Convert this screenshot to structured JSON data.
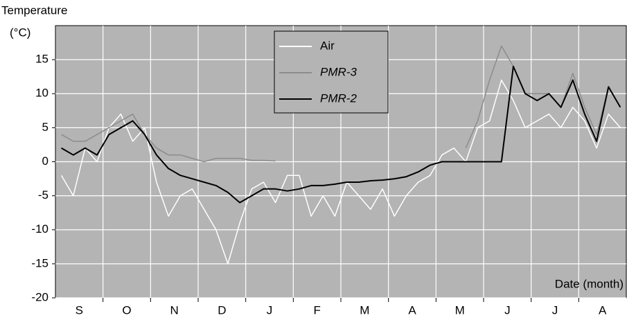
{
  "chart_data": {
    "type": "line",
    "ylabel": "Temperature",
    "yunit": "(°C)",
    "xlabel": "Date (month)",
    "xlim": [
      0,
      12
    ],
    "xticks": [
      {
        "value": 0.5,
        "label": "S"
      },
      {
        "value": 1.5,
        "label": "O"
      },
      {
        "value": 2.5,
        "label": "N"
      },
      {
        "value": 3.5,
        "label": "D"
      },
      {
        "value": 4.5,
        "label": "J"
      },
      {
        "value": 5.5,
        "label": "F"
      },
      {
        "value": 6.5,
        "label": "M"
      },
      {
        "value": 7.5,
        "label": "A"
      },
      {
        "value": 8.5,
        "label": "M"
      },
      {
        "value": 9.5,
        "label": "J"
      },
      {
        "value": 10.5,
        "label": "J"
      },
      {
        "value": 11.5,
        "label": "A"
      }
    ],
    "ylim": [
      -20,
      20
    ],
    "yticks": [
      -20,
      -15,
      -10,
      -5,
      0,
      5,
      10,
      15
    ],
    "grid": true,
    "legend": "top-center",
    "x": [
      0.125,
      0.375,
      0.625,
      0.875,
      1.125,
      1.375,
      1.625,
      1.875,
      2.125,
      2.375,
      2.625,
      2.875,
      3.125,
      3.375,
      3.625,
      3.875,
      4.125,
      4.375,
      4.625,
      4.875,
      5.125,
      5.375,
      5.625,
      5.875,
      6.125,
      6.375,
      6.625,
      6.875,
      7.125,
      7.375,
      7.625,
      7.875,
      8.125,
      8.375,
      8.625,
      8.875,
      9.125,
      9.375,
      9.625,
      9.875,
      10.125,
      10.375,
      10.625,
      10.875,
      11.125,
      11.375,
      11.625,
      11.875
    ],
    "series": [
      {
        "name": "Air",
        "color": "#ffffff",
        "values": [
          -2,
          -5,
          2,
          0,
          5,
          7,
          3,
          5,
          -3,
          -8,
          -5,
          -4,
          -7,
          -10,
          -15,
          -9,
          -4,
          -3,
          -6,
          -2,
          -2,
          -8,
          -5,
          -8,
          -3,
          -5,
          -7,
          -4,
          -8,
          -5,
          -3,
          -2,
          1,
          2,
          0,
          5,
          6,
          12,
          9,
          5,
          6,
          7,
          5,
          8,
          6,
          2,
          7,
          5
        ]
      },
      {
        "name": "PMR-3",
        "color": "#8c8c8c",
        "values": [
          4,
          3,
          3,
          4,
          5,
          6,
          7,
          4,
          2,
          1,
          1,
          0.5,
          0,
          0.5,
          0.5,
          0.5,
          0.2,
          0.2,
          0.1,
          null,
          null,
          null,
          null,
          null,
          null,
          null,
          null,
          null,
          null,
          null,
          null,
          null,
          null,
          null,
          2,
          6,
          12,
          17,
          14,
          10,
          10,
          10,
          8,
          13,
          8,
          4,
          11,
          8
        ]
      },
      {
        "name": "PMR-2",
        "color": "#000000",
        "values": [
          2,
          1,
          2,
          1,
          4,
          5,
          6,
          4,
          1,
          -1,
          -2,
          -2.5,
          -3,
          -3.5,
          -4.5,
          -6,
          -5,
          -4,
          -4,
          -4.3,
          -4,
          -3.5,
          -3.5,
          -3.3,
          -3,
          -3,
          -2.8,
          -2.7,
          -2.5,
          -2.2,
          -1.5,
          -0.5,
          0,
          0,
          0,
          0,
          0,
          0,
          14,
          10,
          9,
          10,
          8,
          12,
          7,
          3,
          11,
          8
        ]
      }
    ]
  }
}
